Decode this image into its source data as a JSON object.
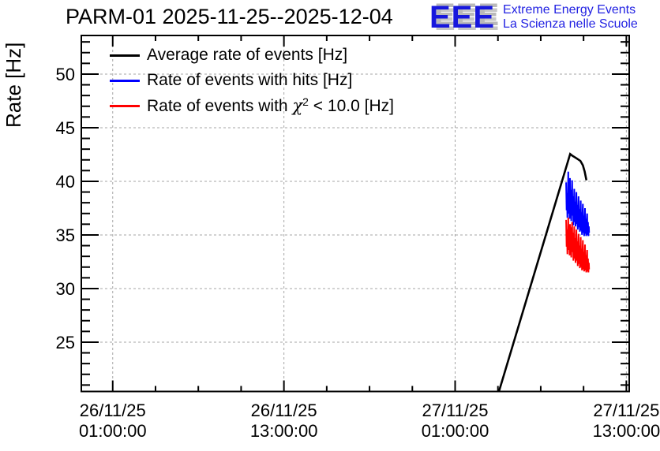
{
  "header": {
    "title": "PARM-01 2025-11-25--2025-12-04",
    "logo": {
      "letters": "EEE",
      "tagline1": "Extreme Energy Events",
      "tagline2": "La Scienza nelle Scuole",
      "text_color": "#1f1fe0",
      "shadow_color": "#bbbbbb"
    }
  },
  "legend": {
    "items": [
      {
        "color": "#000000",
        "label": "Average rate of events [Hz]"
      },
      {
        "color": "#0000ff",
        "label": "Rate of events with hits [Hz]"
      },
      {
        "color": "#ff0000",
        "label": "Rate of events with χ2 < 10.0 [Hz]",
        "parts": {
          "pre": "Rate of events with ",
          "chi": "χ",
          "sup": "2",
          "post": " < 10.0 [Hz]"
        }
      }
    ]
  },
  "chart_data": {
    "type": "line",
    "title": "PARM-01 2025-11-25--2025-12-04",
    "xlabel": "",
    "ylabel": "Rate [Hz]",
    "x_unit": "hours since 26/11/25 00:00:00",
    "xlim": [
      -1.2,
      37.2
    ],
    "ylim": [
      20.4,
      53.6
    ],
    "grid": true,
    "grid_color": "#a6a6a6",
    "legend_position": "top-left",
    "x_major_ticks": [
      {
        "value": 1,
        "date": "26/11/25",
        "time": "01:00:00"
      },
      {
        "value": 13,
        "date": "26/11/25",
        "time": "13:00:00"
      },
      {
        "value": 25,
        "date": "27/11/25",
        "time": "01:00:00"
      },
      {
        "value": 37,
        "date": "27/11/25",
        "time": "13:00:00"
      }
    ],
    "x_minor_step": 3,
    "y_major_ticks": [
      25,
      30,
      35,
      40,
      45,
      50
    ],
    "y_minor_step": 1,
    "series": [
      {
        "name": "Average rate of events [Hz]",
        "color": "#000000",
        "points": [
          [
            28.07,
            20.4
          ],
          [
            33.06,
            42.55
          ],
          [
            33.2,
            42.4
          ],
          [
            33.5,
            42.15
          ],
          [
            33.78,
            41.9
          ],
          [
            33.95,
            41.5
          ],
          [
            34.08,
            40.9
          ],
          [
            34.2,
            40.1
          ]
        ]
      },
      {
        "name": "Rate of events with hits [Hz]",
        "color": "#0000ff",
        "points": [
          [
            32.78,
            39.9
          ],
          [
            32.81,
            37.3
          ],
          [
            32.84,
            38.9
          ],
          [
            32.87,
            36.6
          ],
          [
            32.9,
            38.3
          ],
          [
            32.93,
            40.9
          ],
          [
            32.96,
            37.0
          ],
          [
            32.99,
            38.8
          ],
          [
            33.02,
            36.5
          ],
          [
            33.05,
            40.3
          ],
          [
            33.08,
            37.2
          ],
          [
            33.11,
            39.2
          ],
          [
            33.14,
            36.3
          ],
          [
            33.17,
            38.4
          ],
          [
            33.2,
            40.1
          ],
          [
            33.23,
            36.8
          ],
          [
            33.26,
            38.6
          ],
          [
            33.29,
            35.9
          ],
          [
            33.32,
            37.9
          ],
          [
            33.35,
            39.3
          ],
          [
            33.38,
            36.2
          ],
          [
            33.41,
            38.1
          ],
          [
            33.44,
            35.8
          ],
          [
            33.47,
            37.6
          ],
          [
            33.5,
            39.0
          ],
          [
            33.53,
            36.0
          ],
          [
            33.56,
            37.8
          ],
          [
            33.59,
            35.5
          ],
          [
            33.62,
            37.3
          ],
          [
            33.65,
            38.6
          ],
          [
            33.68,
            35.7
          ],
          [
            33.71,
            37.4
          ],
          [
            33.74,
            35.3
          ],
          [
            33.77,
            36.9
          ],
          [
            33.8,
            38.2
          ],
          [
            33.83,
            35.4
          ],
          [
            33.86,
            37.1
          ],
          [
            33.89,
            35.0
          ],
          [
            33.92,
            36.7
          ],
          [
            33.95,
            37.9
          ],
          [
            33.98,
            35.2
          ],
          [
            34.01,
            36.8
          ],
          [
            34.04,
            34.9
          ],
          [
            34.07,
            36.4
          ],
          [
            34.1,
            37.5
          ],
          [
            34.13,
            35.1
          ],
          [
            34.16,
            36.5
          ],
          [
            34.19,
            34.9
          ],
          [
            34.22,
            36.1
          ],
          [
            34.25,
            37.0
          ],
          [
            34.28,
            35.0
          ],
          [
            34.31,
            36.2
          ],
          [
            34.34,
            34.9
          ],
          [
            34.37,
            35.8
          ],
          [
            34.39,
            35.2
          ]
        ]
      },
      {
        "name": "Rate of events with χ2 < 10.0 [Hz]",
        "color": "#ff0000",
        "points": [
          [
            32.78,
            36.4
          ],
          [
            32.81,
            33.9
          ],
          [
            32.84,
            35.5
          ],
          [
            32.87,
            33.2
          ],
          [
            32.9,
            34.9
          ],
          [
            32.93,
            36.6
          ],
          [
            32.96,
            33.6
          ],
          [
            32.99,
            35.4
          ],
          [
            33.02,
            33.1
          ],
          [
            33.05,
            36.0
          ],
          [
            33.08,
            33.8
          ],
          [
            33.11,
            35.7
          ],
          [
            33.14,
            32.9
          ],
          [
            33.17,
            35.0
          ],
          [
            33.2,
            36.2
          ],
          [
            33.23,
            33.4
          ],
          [
            33.26,
            35.2
          ],
          [
            33.29,
            32.6
          ],
          [
            33.32,
            34.5
          ],
          [
            33.35,
            35.8
          ],
          [
            33.38,
            32.8
          ],
          [
            33.41,
            34.7
          ],
          [
            33.44,
            32.4
          ],
          [
            33.47,
            34.2
          ],
          [
            33.5,
            35.5
          ],
          [
            33.53,
            32.6
          ],
          [
            33.56,
            34.4
          ],
          [
            33.59,
            32.1
          ],
          [
            33.62,
            33.9
          ],
          [
            33.65,
            35.1
          ],
          [
            33.68,
            32.3
          ],
          [
            33.71,
            34.0
          ],
          [
            33.74,
            31.9
          ],
          [
            33.77,
            33.5
          ],
          [
            33.8,
            34.8
          ],
          [
            33.83,
            32.0
          ],
          [
            33.86,
            33.7
          ],
          [
            33.89,
            31.7
          ],
          [
            33.92,
            33.3
          ],
          [
            33.95,
            34.5
          ],
          [
            33.98,
            31.8
          ],
          [
            34.01,
            33.4
          ],
          [
            34.04,
            31.6
          ],
          [
            34.07,
            33.0
          ],
          [
            34.1,
            34.1
          ],
          [
            34.13,
            31.7
          ],
          [
            34.16,
            33.1
          ],
          [
            34.19,
            31.5
          ],
          [
            34.22,
            32.7
          ],
          [
            34.25,
            33.6
          ],
          [
            34.28,
            31.6
          ],
          [
            34.31,
            32.8
          ],
          [
            34.34,
            31.5
          ],
          [
            34.37,
            32.4
          ],
          [
            34.39,
            31.8
          ]
        ]
      }
    ]
  }
}
